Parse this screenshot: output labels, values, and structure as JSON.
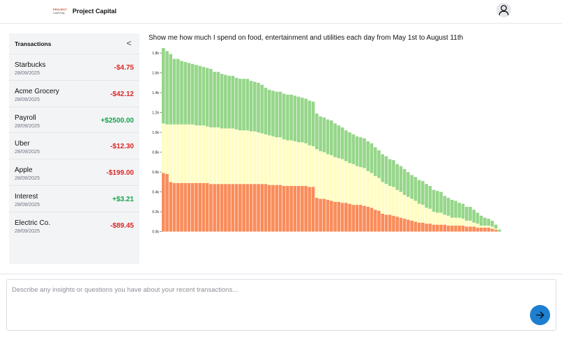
{
  "header": {
    "logo_line1": "PROJECT",
    "logo_line2": "CAPITAL",
    "app_title": "Project Capital"
  },
  "sidebar": {
    "title": "Transactions",
    "collapse_glyph": "<",
    "items": [
      {
        "name": "Starbucks",
        "date": "28/09/2025",
        "amount": "-$4.75",
        "sign": "neg"
      },
      {
        "name": "Acme Grocery",
        "date": "28/09/2025",
        "amount": "-$42.12",
        "sign": "neg"
      },
      {
        "name": "Payroll",
        "date": "28/09/2025",
        "amount": "+$2500.00",
        "sign": "pos"
      },
      {
        "name": "Uber",
        "date": "28/09/2025",
        "amount": "-$12.30",
        "sign": "neg"
      },
      {
        "name": "Apple",
        "date": "28/09/2025",
        "amount": "-$199.00",
        "sign": "neg"
      },
      {
        "name": "Interest",
        "date": "28/09/2025",
        "amount": "+$3.21",
        "sign": "pos"
      },
      {
        "name": "Electric Co.",
        "date": "28/09/2025",
        "amount": "-$89.45",
        "sign": "neg"
      }
    ]
  },
  "main": {
    "prompt": "Show me how much I spend on food, entertainment and utilities each day from May 1st to August 11th"
  },
  "input": {
    "placeholder": "Describe any insights or questions you have about your recent transactions..."
  },
  "icons": {
    "avatar": "user-icon",
    "send": "arrow-right-icon",
    "collapse": "chevron-left-icon"
  },
  "colors": {
    "food": "#fa8c5a",
    "entertainment": "#fffdc3",
    "utilities": "#96d68a",
    "send_button": "#1d7fd1",
    "negative": "#dc2626",
    "positive": "#16a34a"
  },
  "chart_data": {
    "type": "bar",
    "stacked": true,
    "title": "",
    "xlabel": "",
    "ylabel": "",
    "ylim": [
      0,
      1850
    ],
    "y_ticks": [
      "0.0k",
      "0.2k",
      "0.4k",
      "0.6k",
      "0.8k",
      "1.0k",
      "1.2k",
      "1.4k",
      "1.6k",
      "1.8k"
    ],
    "x_tick_labels": false,
    "series": [
      {
        "color_key": "food",
        "values": [
          590,
          580,
          500,
          490,
          490,
          490,
          490,
          490,
          490,
          490,
          490,
          490,
          490,
          480,
          480,
          480,
          480,
          480,
          480,
          480,
          480,
          480,
          480,
          480,
          480,
          480,
          480,
          480,
          480,
          470,
          470,
          470,
          470,
          460,
          460,
          460,
          460,
          460,
          460,
          460,
          450,
          450,
          340,
          330,
          330,
          320,
          310,
          300,
          300,
          290,
          290,
          280,
          270,
          270,
          270,
          260,
          250,
          240,
          220,
          210,
          180,
          170,
          170,
          160,
          150,
          140,
          130,
          120,
          110,
          100,
          90,
          90,
          80,
          80,
          70,
          70,
          70,
          70,
          60,
          60,
          60,
          60,
          60,
          50,
          50,
          50,
          40,
          40,
          40,
          40,
          30,
          20,
          0
        ]
      },
      {
        "color_key": "entertainment",
        "values": [
          500,
          500,
          580,
          590,
          590,
          590,
          590,
          590,
          590,
          580,
          580,
          580,
          570,
          570,
          570,
          570,
          560,
          560,
          560,
          560,
          550,
          540,
          540,
          540,
          530,
          530,
          520,
          510,
          500,
          500,
          490,
          480,
          480,
          470,
          460,
          460,
          450,
          440,
          440,
          430,
          420,
          410,
          490,
          480,
          470,
          460,
          460,
          450,
          440,
          440,
          420,
          410,
          410,
          390,
          380,
          380,
          360,
          350,
          340,
          330,
          320,
          310,
          290,
          290,
          270,
          260,
          240,
          230,
          220,
          210,
          190,
          180,
          160,
          150,
          130,
          120,
          120,
          100,
          100,
          80,
          80,
          80,
          70,
          60,
          60,
          40,
          40,
          20,
          20,
          20,
          20,
          10,
          0
        ]
      },
      {
        "color_key": "utilities",
        "values": [
          760,
          740,
          710,
          660,
          660,
          640,
          630,
          620,
          610,
          610,
          600,
          590,
          590,
          590,
          560,
          560,
          550,
          540,
          530,
          530,
          520,
          520,
          520,
          520,
          510,
          500,
          500,
          490,
          470,
          460,
          460,
          460,
          460,
          460,
          460,
          460,
          460,
          460,
          450,
          450,
          450,
          450,
          360,
          350,
          350,
          350,
          350,
          340,
          330,
          320,
          310,
          310,
          300,
          300,
          300,
          300,
          300,
          300,
          290,
          280,
          280,
          280,
          270,
          270,
          260,
          260,
          260,
          250,
          240,
          240,
          240,
          240,
          240,
          230,
          220,
          220,
          210,
          190,
          180,
          180,
          170,
          150,
          150,
          140,
          140,
          130,
          110,
          100,
          80,
          70,
          60,
          40,
          20
        ]
      }
    ]
  }
}
